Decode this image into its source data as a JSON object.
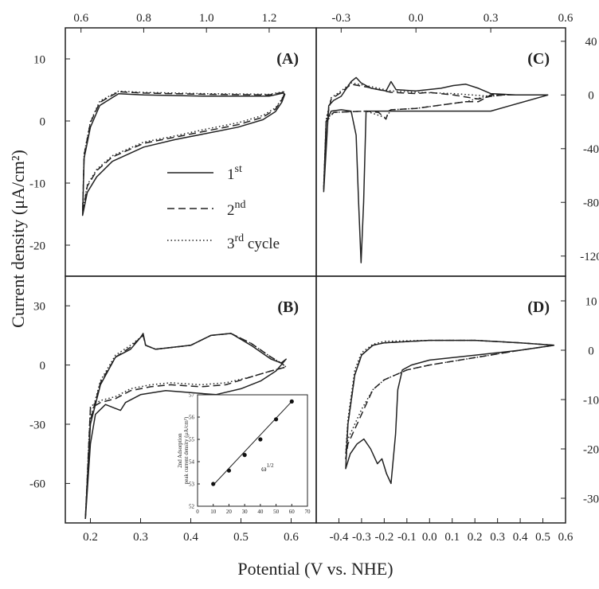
{
  "figure": {
    "ylabel": "Current density (μA/cm²)",
    "xlabel": "Potential (V vs. NHE)"
  },
  "legend": [
    {
      "main": "1",
      "sup": "st",
      "suffix": "",
      "dash": "solid"
    },
    {
      "main": "2",
      "sup": "nd",
      "suffix": "",
      "dash": "dashed"
    },
    {
      "main": "3",
      "sup": "rd",
      "suffix": " cycle",
      "dash": "dotted"
    }
  ],
  "chart_data": [
    {
      "panel": "A",
      "label": "(A)",
      "type": "line",
      "xlim": [
        0.55,
        1.35
      ],
      "ylim": [
        -25,
        15
      ],
      "xticks": [
        0.6,
        0.8,
        1.0,
        1.2
      ],
      "xtick_labels": [
        "0.6",
        "0.8",
        "1.0",
        "1.2"
      ],
      "xaxis": "top",
      "yticks": [
        10,
        0,
        -10,
        -20
      ],
      "ytick_labels": [
        "10",
        "0",
        "-10",
        "-20"
      ],
      "yaxis": "left",
      "series": [
        {
          "dash": "solid",
          "x": [
            1.245,
            1.2,
            1.0,
            0.8,
            0.72,
            0.66,
            0.63,
            0.61,
            0.605,
            0.62,
            0.65,
            0.7,
            0.8,
            0.9,
            1.0,
            1.1,
            1.18,
            1.22,
            1.24,
            1.25,
            1.245
          ],
          "y": [
            4.5,
            4.0,
            4.0,
            4.2,
            4.4,
            2.5,
            -1.0,
            -6.0,
            -15.2,
            -11.5,
            -9.0,
            -6.5,
            -4.2,
            -3.0,
            -2.0,
            -1.0,
            0.2,
            1.5,
            3.0,
            4.3,
            4.5
          ]
        },
        {
          "dash": "dashed",
          "x": [
            1.245,
            1.2,
            1.0,
            0.8,
            0.72,
            0.66,
            0.63,
            0.61,
            0.605,
            0.62,
            0.65,
            0.7,
            0.8,
            0.9,
            1.0,
            1.1,
            1.18,
            1.22,
            1.24,
            1.25,
            1.245
          ],
          "y": [
            4.6,
            4.2,
            4.3,
            4.5,
            4.7,
            3.0,
            -0.3,
            -5.5,
            -14.8,
            -10.5,
            -8.0,
            -5.8,
            -3.6,
            -2.6,
            -1.6,
            -0.6,
            0.6,
            1.9,
            3.4,
            4.5,
            4.6
          ]
        },
        {
          "dash": "dotted",
          "x": [
            1.245,
            1.2,
            1.0,
            0.8,
            0.72,
            0.66,
            0.63,
            0.61,
            0.605,
            0.62,
            0.65,
            0.7,
            0.8,
            0.9,
            1.0,
            1.1,
            1.18,
            1.22,
            1.24,
            1.25,
            1.245
          ],
          "y": [
            4.7,
            4.3,
            4.4,
            4.6,
            4.8,
            3.2,
            -0.1,
            -5.3,
            -14.6,
            -10.3,
            -7.8,
            -5.6,
            -3.4,
            -2.4,
            -1.3,
            -0.3,
            0.9,
            2.1,
            3.5,
            4.6,
            4.7
          ]
        }
      ]
    },
    {
      "panel": "B",
      "label": "(B)",
      "type": "line",
      "xlim": [
        0.15,
        0.65
      ],
      "ylim": [
        -80,
        45
      ],
      "xticks": [
        0.2,
        0.3,
        0.4,
        0.5,
        0.6
      ],
      "xtick_labels": [
        "0.2",
        "0.3",
        "0.4",
        "0.5",
        "0.6"
      ],
      "xaxis": "bottom",
      "yticks": [
        30,
        0,
        -30,
        -60
      ],
      "ytick_labels": [
        "30",
        "0",
        "-30",
        "-60"
      ],
      "yaxis": "left",
      "series": [
        {
          "dash": "solid",
          "x": [
            0.19,
            0.2,
            0.22,
            0.25,
            0.28,
            0.3,
            0.305,
            0.31,
            0.33,
            0.4,
            0.44,
            0.48,
            0.52,
            0.56,
            0.58,
            0.59,
            0.57,
            0.54,
            0.5,
            0.45,
            0.4,
            0.35,
            0.3,
            0.27,
            0.26,
            0.25,
            0.23,
            0.21,
            0.2,
            0.19
          ],
          "y": [
            -78,
            -30,
            -10,
            4,
            8,
            14,
            16,
            10,
            8,
            10,
            15,
            16,
            10,
            3,
            1,
            3,
            -3,
            -8,
            -12,
            -15,
            -14,
            -13,
            -15,
            -19,
            -23,
            -22,
            -20,
            -25,
            -40,
            -78
          ]
        },
        {
          "dash": "dashed",
          "x": [
            0.19,
            0.2,
            0.22,
            0.25,
            0.28,
            0.3,
            0.305,
            0.31,
            0.33,
            0.4,
            0.44,
            0.48,
            0.52,
            0.56,
            0.58,
            0.59,
            0.56,
            0.52,
            0.47,
            0.42,
            0.36,
            0.32,
            0.28,
            0.25,
            0.22,
            0.2,
            0.19
          ],
          "y": [
            -78,
            -28,
            -9,
            4,
            9,
            14,
            15,
            10,
            8,
            10,
            15,
            16,
            11,
            4,
            1,
            -1,
            -3,
            -6,
            -10,
            -11,
            -10,
            -11,
            -13,
            -17,
            -19,
            -22,
            -78
          ]
        },
        {
          "dash": "dotted",
          "x": [
            0.19,
            0.2,
            0.22,
            0.25,
            0.28,
            0.3,
            0.305,
            0.31,
            0.33,
            0.4,
            0.44,
            0.48,
            0.52,
            0.56,
            0.58,
            0.59,
            0.56,
            0.52,
            0.47,
            0.42,
            0.36,
            0.32,
            0.28,
            0.25,
            0.22,
            0.2,
            0.19
          ],
          "y": [
            -78,
            -27,
            -8,
            5,
            10,
            14,
            15,
            10,
            8,
            10,
            15,
            16,
            11,
            4,
            1,
            -1,
            -3,
            -6,
            -9,
            -10,
            -9,
            -10,
            -12,
            -16,
            -18,
            -21,
            -78
          ]
        }
      ]
    },
    {
      "panel": "B-inset",
      "label": "",
      "type": "scatter",
      "xlabel_main": "ω",
      "xlabel_sup": "1/2",
      "ylabel_lines": [
        "nd Adsorption",
        "peak current density (μA/cm²)"
      ],
      "ylabel_prefix": "2",
      "xlim": [
        0,
        70
      ],
      "ylim": [
        52,
        57
      ],
      "xticks": [
        0,
        10,
        20,
        30,
        40,
        50,
        60,
        70
      ],
      "xtick_labels": [
        "0",
        "10",
        "20",
        "30",
        "40",
        "50",
        "60",
        "70"
      ],
      "yticks": [
        52,
        53,
        54,
        55,
        56,
        57
      ],
      "ytick_labels": [
        "52",
        "53",
        "54",
        "55",
        "56",
        "57"
      ],
      "x": [
        10,
        20,
        30,
        40,
        50,
        60
      ],
      "y": [
        53.0,
        53.6,
        54.3,
        55.0,
        55.9,
        56.7
      ],
      "fit": {
        "x": [
          10,
          60
        ],
        "y": [
          52.95,
          56.7
        ]
      }
    },
    {
      "panel": "C",
      "label": "(C)",
      "type": "line",
      "xlim": [
        -0.4,
        0.6
      ],
      "ylim": [
        -135,
        50
      ],
      "xticks": [
        -0.3,
        0.0,
        0.3,
        0.6
      ],
      "xtick_labels": [
        "-0.3",
        "0.0",
        "0.3",
        "0.6"
      ],
      "xaxis": "top",
      "yticks": [
        40,
        0,
        -40,
        -80,
        -120
      ],
      "ytick_labels": [
        "40",
        "0",
        "-40",
        "-80",
        "-120"
      ],
      "yaxis": "right",
      "series": [
        {
          "dash": "solid",
          "x": [
            0.53,
            0.4,
            0.3,
            0.25,
            0.2,
            0.15,
            0.1,
            0.0,
            -0.08,
            -0.1,
            -0.12,
            -0.18,
            -0.22,
            -0.24,
            -0.26,
            -0.3,
            -0.33,
            -0.35,
            -0.37,
            -0.36,
            -0.34,
            -0.3,
            -0.26,
            -0.24,
            -0.23,
            -0.22,
            -0.21,
            -0.2,
            -0.15,
            0.0,
            0.3,
            0.53
          ],
          "y": [
            0,
            0,
            1,
            5,
            8,
            7,
            5,
            3,
            4,
            10,
            3,
            5,
            9,
            13,
            10,
            -1,
            -4,
            -8,
            -72,
            -20,
            -12,
            -11,
            -12,
            -30,
            -80,
            -125,
            -80,
            -12,
            -12,
            -12,
            -12,
            0
          ]
        },
        {
          "dash": "dashed",
          "x": [
            0.53,
            0.35,
            0.3,
            0.25,
            0.15,
            0.05,
            0.0,
            -0.1,
            -0.2,
            -0.26,
            -0.3,
            -0.34,
            -0.36,
            -0.37,
            -0.36,
            -0.33,
            -0.2,
            -0.15,
            -0.12,
            -0.11,
            -0.1,
            0.0,
            0.2,
            0.25,
            0.3,
            0.53
          ],
          "y": [
            0,
            0,
            -1,
            -3,
            0,
            2,
            1,
            2,
            6,
            8,
            2,
            -3,
            -20,
            -70,
            -20,
            -13,
            -12,
            -13,
            -18,
            -12,
            -11,
            -10,
            -5,
            -5,
            0,
            0
          ]
        },
        {
          "dash": "dotted",
          "x": [
            0.53,
            0.35,
            0.3,
            0.15,
            0.0,
            -0.1,
            -0.2,
            -0.26,
            -0.3,
            -0.34,
            -0.36,
            -0.37,
            -0.36,
            -0.33,
            -0.2,
            -0.12,
            -0.1,
            0.0,
            0.2,
            0.3,
            0.53
          ],
          "y": [
            0,
            0,
            -1,
            1,
            2,
            3,
            7,
            9,
            3,
            -2,
            -18,
            -68,
            -18,
            -13,
            -12,
            -17,
            -11,
            -10,
            -5,
            0,
            0
          ]
        }
      ]
    },
    {
      "panel": "D",
      "label": "(D)",
      "type": "line",
      "xlim": [
        -0.5,
        0.6
      ],
      "ylim": [
        -35,
        15
      ],
      "xticks": [
        -0.4,
        -0.3,
        -0.2,
        -0.1,
        0.0,
        0.1,
        0.2,
        0.3,
        0.4,
        0.5,
        0.6
      ],
      "xtick_labels": [
        "-0.4",
        "-0.3",
        "-0.2",
        "-0.1",
        "0.0",
        "0.1",
        "0.2",
        "0.3",
        "0.4",
        "0.5",
        "0.6"
      ],
      "xaxis": "bottom",
      "yticks": [
        10,
        0,
        -10,
        -20,
        -30
      ],
      "ytick_labels": [
        "10",
        "0",
        "-10",
        "-20",
        "-30"
      ],
      "yaxis": "right",
      "series": [
        {
          "dash": "solid",
          "x": [
            0.55,
            0.4,
            0.2,
            0.0,
            -0.2,
            -0.25,
            -0.3,
            -0.33,
            -0.36,
            -0.37,
            -0.35,
            -0.32,
            -0.29,
            -0.26,
            -0.23,
            -0.21,
            -0.19,
            -0.17,
            -0.15,
            -0.14,
            -0.12,
            -0.08,
            0.0,
            0.2,
            0.4,
            0.55
          ],
          "y": [
            1,
            1.5,
            2,
            2,
            1.5,
            1,
            -1,
            -5,
            -15,
            -24,
            -21,
            -19,
            -18,
            -20,
            -23,
            -22,
            -25,
            -27,
            -17,
            -8,
            -4,
            -3,
            -2,
            -1,
            0,
            1
          ]
        },
        {
          "dash": "dashed",
          "x": [
            0.55,
            0.4,
            0.2,
            0.0,
            -0.2,
            -0.25,
            -0.3,
            -0.33,
            -0.36,
            -0.37,
            -0.36,
            -0.33,
            -0.3,
            -0.25,
            -0.2,
            -0.15,
            -0.1,
            0.0,
            0.2,
            0.4,
            0.55
          ],
          "y": [
            1,
            1.5,
            2,
            2,
            1.5,
            1,
            -1,
            -5,
            -15,
            -22,
            -19,
            -16,
            -13,
            -8,
            -6,
            -5,
            -4,
            -3,
            -1.5,
            0,
            1
          ]
        },
        {
          "dash": "dotted",
          "x": [
            0.55,
            0.4,
            0.2,
            0.0,
            -0.2,
            -0.25,
            -0.3,
            -0.33,
            -0.36,
            -0.37,
            -0.36,
            -0.33,
            -0.3,
            -0.25,
            -0.2,
            -0.15,
            -0.1,
            0.0,
            0.2,
            0.4,
            0.55
          ],
          "y": [
            1,
            1.5,
            2,
            2,
            1.8,
            1.2,
            -0.5,
            -4,
            -14,
            -21,
            -18,
            -15,
            -12,
            -8,
            -6,
            -5,
            -4,
            -3,
            -1.5,
            0,
            1
          ]
        }
      ]
    }
  ]
}
